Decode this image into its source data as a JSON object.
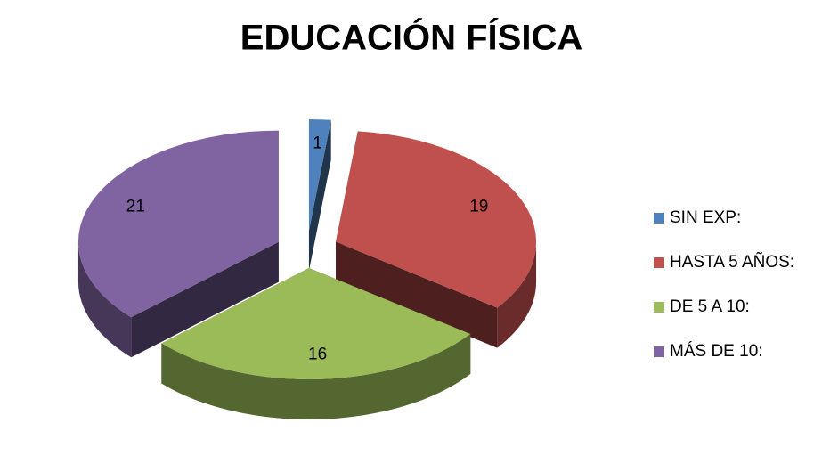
{
  "chart_data": {
    "type": "pie",
    "title": "EDUCACIÓN FÍSICA",
    "categories": [
      "SIN EXP:",
      "HASTA 5 AÑOS:",
      "DE 5 A 10:",
      "MÁS DE 10:"
    ],
    "values": [
      1,
      19,
      16,
      21
    ],
    "colors": [
      "#4f81bd",
      "#c0504d",
      "#9bbb59",
      "#8064a2"
    ],
    "legend": "right",
    "exploded": true,
    "three_d": true
  }
}
